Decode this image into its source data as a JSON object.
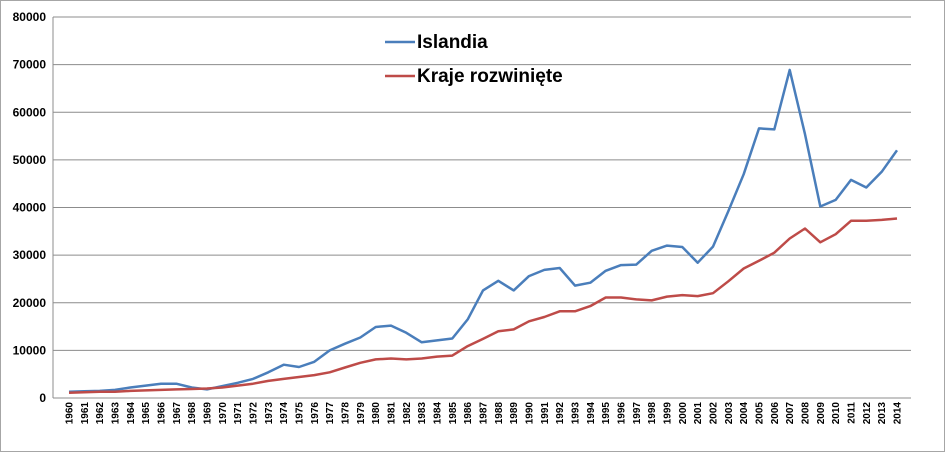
{
  "chart_data": {
    "type": "line",
    "title": "",
    "xlabel": "",
    "ylabel": "",
    "ylim": [
      0,
      80000
    ],
    "yticks": [
      "0",
      "10000",
      "20000",
      "30000",
      "40000",
      "50000",
      "60000",
      "70000",
      "80000"
    ],
    "categories": [
      "1960",
      "1961",
      "1962",
      "1963",
      "1964",
      "1965",
      "1966",
      "1967",
      "1968",
      "1969",
      "1970",
      "1971",
      "1972",
      "1973",
      "1974",
      "1975",
      "1976",
      "1977",
      "1978",
      "1979",
      "1980",
      "1981",
      "1982",
      "1983",
      "1984",
      "1985",
      "1986",
      "1987",
      "1988",
      "1989",
      "1990",
      "1991",
      "1992",
      "1993",
      "1994",
      "1995",
      "1996",
      "1997",
      "1998",
      "1999",
      "2000",
      "2001",
      "2002",
      "2003",
      "2004",
      "2005",
      "2006",
      "2007",
      "2008",
      "2009",
      "2010",
      "2011",
      "2012",
      "2013",
      "2014"
    ],
    "grid": true,
    "legend_position": "top-center",
    "series": [
      {
        "name": "Islandia",
        "color": "#4a7ebb",
        "values": [
          1300,
          1400,
          1500,
          1700,
          2200,
          2600,
          3000,
          3000,
          2200,
          1800,
          2500,
          3200,
          4000,
          5400,
          7000,
          6500,
          7600,
          10000,
          11400,
          12700,
          14900,
          15200,
          13700,
          11700,
          12100,
          12500,
          16500,
          22600,
          24600,
          22600,
          25600,
          26900,
          27300,
          23600,
          24200,
          26700,
          27900,
          28000,
          30900,
          32000,
          31700,
          28400,
          31800,
          39200,
          47000,
          56600,
          56400,
          68900,
          55400,
          40200,
          41600,
          45800,
          44200,
          47500,
          52000
        ]
      },
      {
        "name": "Kraje rozwinięte",
        "color": "#be4b48",
        "values": [
          1100,
          1200,
          1300,
          1300,
          1500,
          1600,
          1700,
          1800,
          1900,
          2000,
          2200,
          2600,
          3000,
          3600,
          4000,
          4400,
          4800,
          5400,
          6400,
          7400,
          8100,
          8300,
          8100,
          8300,
          8700,
          8900,
          10900,
          12400,
          14000,
          14400,
          16100,
          17000,
          18200,
          18200,
          19300,
          21100,
          21100,
          20700,
          20500,
          21300,
          21600,
          21400,
          22000,
          24500,
          27200,
          28800,
          30500,
          33500,
          35600,
          32700,
          34400,
          37200,
          37200,
          37400,
          37700
        ]
      }
    ]
  }
}
